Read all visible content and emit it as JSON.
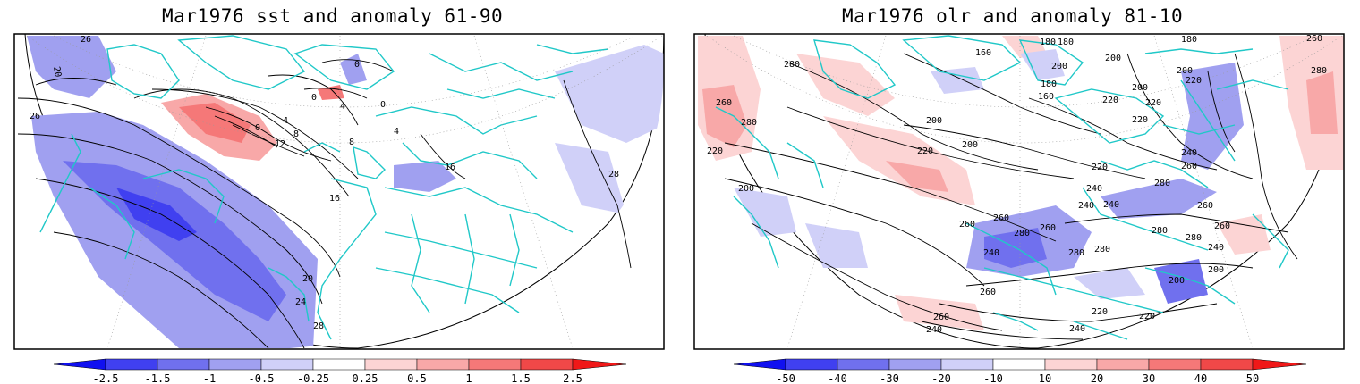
{
  "panels": [
    {
      "title": "Mar1976 sst and anomaly 61-90",
      "colorbar": {
        "tick_labels": [
          "-2.5",
          "-1.5",
          "-1",
          "-0.5",
          "-0.25",
          "0.25",
          "0.5",
          "1",
          "1.5",
          "2.5"
        ],
        "colors": [
          "#1010f0",
          "#4040f0",
          "#7070ee",
          "#a0a0f0",
          "#d0d0f8",
          "#ffffff",
          "#fcd4d4",
          "#f8a8a8",
          "#f57878",
          "#f04848",
          "#f01818"
        ]
      },
      "contour_labels": [
        "26",
        "20",
        "26",
        "0",
        "4",
        "8",
        "12",
        "16",
        "0",
        "4",
        "0",
        "4",
        "8",
        "16",
        "16",
        "20",
        "24",
        "28",
        "28"
      ]
    },
    {
      "title": "Mar1976 olr and anomaly 81-10",
      "colorbar": {
        "tick_labels": [
          "-50",
          "-40",
          "-30",
          "-20",
          "-10",
          "10",
          "20",
          "30",
          "40",
          "50"
        ],
        "colors": [
          "#1010f0",
          "#4040f0",
          "#7070ee",
          "#a0a0f0",
          "#d0d0f8",
          "#ffffff",
          "#fcd4d4",
          "#f8a8a8",
          "#f57878",
          "#f04848",
          "#f01818"
        ]
      },
      "contour_labels": [
        "280",
        "260",
        "280",
        "220",
        "200",
        "180",
        "160",
        "200",
        "220",
        "200",
        "220",
        "240",
        "260",
        "260",
        "280",
        "240",
        "240",
        "280",
        "260",
        "280",
        "240",
        "200",
        "260",
        "260",
        "240",
        "220",
        "220",
        "240",
        "200",
        "160",
        "200",
        "260",
        "280",
        "240",
        "280",
        "260"
      ]
    }
  ]
}
